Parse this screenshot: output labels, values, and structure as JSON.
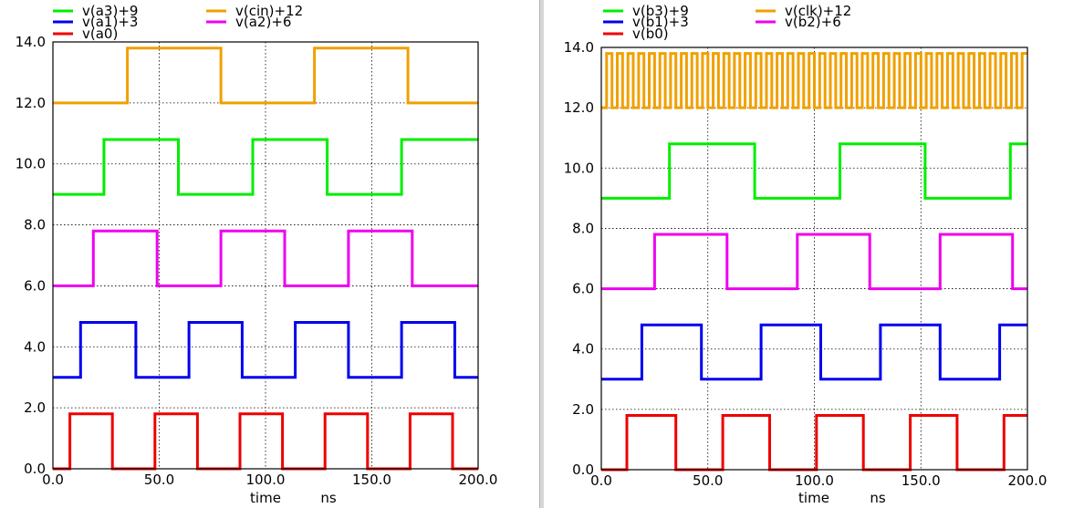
{
  "chart_data": [
    {
      "type": "line",
      "xlabel": "time",
      "xunit": "ns",
      "xlim": [
        0,
        200
      ],
      "ylim": [
        0,
        14
      ],
      "xticks": [
        "0.0",
        "50.0",
        "100.0",
        "150.0",
        "200.0"
      ],
      "yticks": [
        "0.0",
        "2.0",
        "4.0",
        "6.0",
        "8.0",
        "10.0",
        "12.0",
        "14.0"
      ],
      "grid": true,
      "legend_position": "top",
      "series": [
        {
          "name": "v(a3)+9",
          "color": "#00ee00",
          "low": 9,
          "high": 10.8,
          "x": [
            0,
            24,
            24,
            59,
            59,
            94,
            94,
            129,
            129,
            164,
            164,
            200
          ],
          "y": [
            9,
            9,
            10.8,
            10.8,
            9,
            9,
            10.8,
            10.8,
            9,
            9,
            10.8,
            10.8
          ]
        },
        {
          "name": "v(a1)+3",
          "color": "#0000ee",
          "low": 3,
          "high": 4.8,
          "x": [
            0,
            13,
            13,
            39,
            39,
            64,
            64,
            89,
            89,
            114,
            114,
            139,
            139,
            164,
            164,
            189,
            189,
            200
          ],
          "y": [
            3,
            3,
            4.8,
            4.8,
            3,
            3,
            4.8,
            4.8,
            3,
            3,
            4.8,
            4.8,
            3,
            3,
            4.8,
            4.8,
            3,
            3
          ]
        },
        {
          "name": "v(cin)+12",
          "color": "#f0a000",
          "low": 12,
          "high": 13.8,
          "x": [
            0,
            35,
            35,
            79,
            79,
            123,
            123,
            167,
            167,
            200
          ],
          "y": [
            12,
            12,
            13.8,
            13.8,
            12,
            12,
            13.8,
            13.8,
            12,
            12
          ]
        },
        {
          "name": "v(a2)+6",
          "color": "#ee00ee",
          "low": 6,
          "high": 7.8,
          "x": [
            0,
            19,
            19,
            49,
            49,
            79,
            79,
            109,
            109,
            139,
            139,
            169,
            169,
            200
          ],
          "y": [
            6,
            6,
            7.8,
            7.8,
            6,
            6,
            7.8,
            7.8,
            6,
            6,
            7.8,
            7.8,
            6,
            6
          ]
        },
        {
          "name": "v(a0)",
          "color": "#ee0000",
          "low": 0,
          "high": 1.8,
          "x": [
            0,
            8,
            8,
            28,
            28,
            48,
            48,
            68,
            68,
            88,
            88,
            108,
            108,
            128,
            128,
            148,
            148,
            168,
            168,
            188,
            188,
            200
          ],
          "y": [
            0,
            0,
            1.8,
            1.8,
            0,
            0,
            1.8,
            1.8,
            0,
            0,
            1.8,
            1.8,
            0,
            0,
            1.8,
            1.8,
            0,
            0,
            1.8,
            1.8,
            0,
            0
          ]
        }
      ]
    },
    {
      "type": "line",
      "xlabel": "time",
      "xunit": "ns",
      "xlim": [
        0,
        200
      ],
      "ylim": [
        0,
        14
      ],
      "xticks": [
        "0.0",
        "50.0",
        "100.0",
        "150.0",
        "200.0"
      ],
      "yticks": [
        "0.0",
        "2.0",
        "4.0",
        "6.0",
        "8.0",
        "10.0",
        "12.0",
        "14.0"
      ],
      "grid": true,
      "legend_position": "top",
      "series": [
        {
          "name": "v(b3)+9",
          "color": "#00ee00",
          "low": 9,
          "high": 10.8,
          "x": [
            0,
            32,
            32,
            72,
            72,
            112,
            112,
            152,
            152,
            192,
            192,
            200
          ],
          "y": [
            9,
            9,
            10.8,
            10.8,
            9,
            9,
            10.8,
            10.8,
            9,
            9,
            10.8,
            10.8
          ]
        },
        {
          "name": "v(b1)+3",
          "color": "#0000ee",
          "low": 3,
          "high": 4.8,
          "x": [
            0,
            19,
            19,
            47,
            47,
            75,
            75,
            103,
            103,
            131,
            131,
            159,
            159,
            187,
            187,
            200
          ],
          "y": [
            3,
            3,
            4.8,
            4.8,
            3,
            3,
            4.8,
            4.8,
            3,
            3,
            4.8,
            4.8,
            3,
            3,
            4.8,
            4.8
          ]
        },
        {
          "name": "v(clk)+12",
          "color": "#f0a000",
          "low": 12,
          "high": 13.8,
          "period": 5,
          "first_rise": 2.5,
          "x": [
            0,
            200
          ],
          "y": [
            12,
            12
          ]
        },
        {
          "name": "v(b2)+6",
          "color": "#ee00ee",
          "low": 6,
          "high": 7.8,
          "x": [
            0,
            25,
            25,
            59,
            59,
            92,
            92,
            126,
            126,
            159,
            159,
            193,
            193,
            200
          ],
          "y": [
            6,
            6,
            7.8,
            7.8,
            6,
            6,
            7.8,
            7.8,
            6,
            6,
            7.8,
            7.8,
            6,
            6
          ]
        },
        {
          "name": "v(b0)",
          "color": "#ee0000",
          "low": 0,
          "high": 1.8,
          "x": [
            0,
            12,
            12,
            35,
            35,
            57,
            57,
            79,
            79,
            101,
            101,
            123,
            123,
            145,
            145,
            167,
            167,
            189,
            189,
            200
          ],
          "y": [
            0,
            0,
            1.8,
            1.8,
            0,
            0,
            1.8,
            1.8,
            0,
            0,
            1.8,
            1.8,
            0,
            0,
            1.8,
            1.8,
            0,
            0,
            1.8,
            1.8
          ]
        }
      ]
    }
  ]
}
